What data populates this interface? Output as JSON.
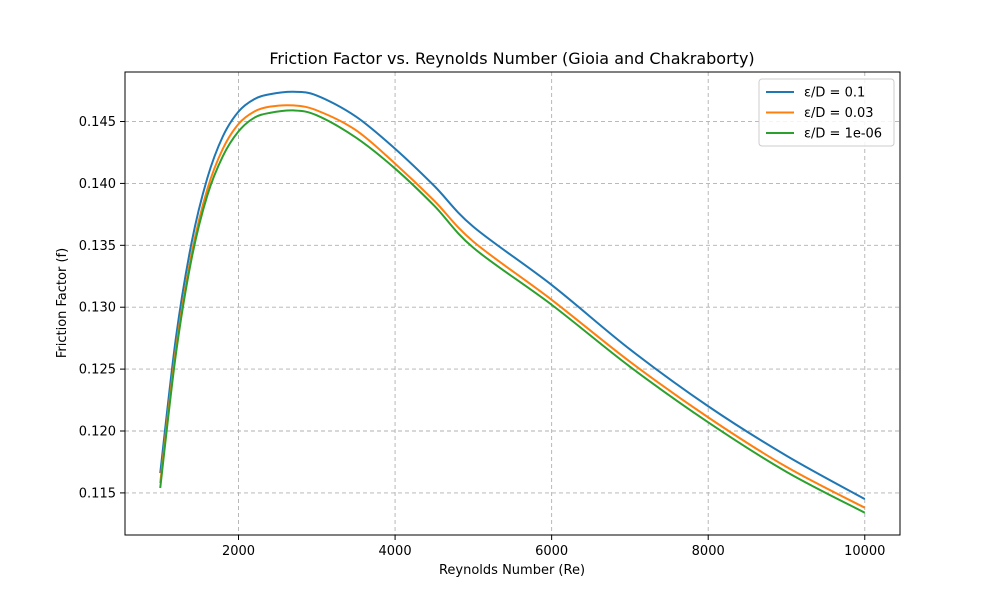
{
  "chart_data": {
    "type": "line",
    "title": "Friction Factor vs. Reynolds Number (Gioia and Chakraborty)",
    "xlabel": "Reynolds Number (Re)",
    "ylabel": "Friction Factor (f)",
    "xlim": [
      550,
      10450
    ],
    "ylim": [
      0.1116,
      0.149
    ],
    "xticks": [
      2000,
      4000,
      6000,
      8000,
      10000
    ],
    "xtick_labels": [
      "2000",
      "4000",
      "6000",
      "8000",
      "10000"
    ],
    "yticks": [
      0.115,
      0.12,
      0.125,
      0.13,
      0.135,
      0.14,
      0.145
    ],
    "ytick_labels": [
      "0.115",
      "0.120",
      "0.125",
      "0.130",
      "0.135",
      "0.140",
      "0.145"
    ],
    "grid": true,
    "legend_position": "top-right",
    "x": [
      1000,
      1200,
      1400,
      1600,
      1800,
      2000,
      2200,
      2400,
      2700,
      3000,
      3500,
      4000,
      4500,
      5000,
      6000,
      7000,
      8000,
      9000,
      10000
    ],
    "series": [
      {
        "name": "ε/D = 0.1",
        "color": "#1f77b4",
        "values": [
          0.1166,
          0.1275,
          0.1352,
          0.1404,
          0.1438,
          0.1458,
          0.1468,
          0.1472,
          0.1474,
          0.1471,
          0.1454,
          0.1428,
          0.1398,
          0.1365,
          0.1318,
          0.1266,
          0.122,
          0.118,
          0.1145
        ]
      },
      {
        "name": "ε/D = 0.03",
        "color": "#ff7f0e",
        "values": [
          0.1158,
          0.1266,
          0.1343,
          0.1395,
          0.1428,
          0.1448,
          0.1458,
          0.1462,
          0.1463,
          0.1459,
          0.1443,
          0.1416,
          0.1386,
          0.1353,
          0.1306,
          0.1256,
          0.1211,
          0.1171,
          0.1138
        ]
      },
      {
        "name": "ε/D = 1e-06",
        "color": "#2ca02c",
        "values": [
          0.1154,
          0.1262,
          0.1339,
          0.139,
          0.1422,
          0.1442,
          0.1453,
          0.1457,
          0.1459,
          0.1455,
          0.1437,
          0.1412,
          0.1382,
          0.1348,
          0.1302,
          0.1252,
          0.1207,
          0.1167,
          0.1134
        ]
      }
    ]
  }
}
